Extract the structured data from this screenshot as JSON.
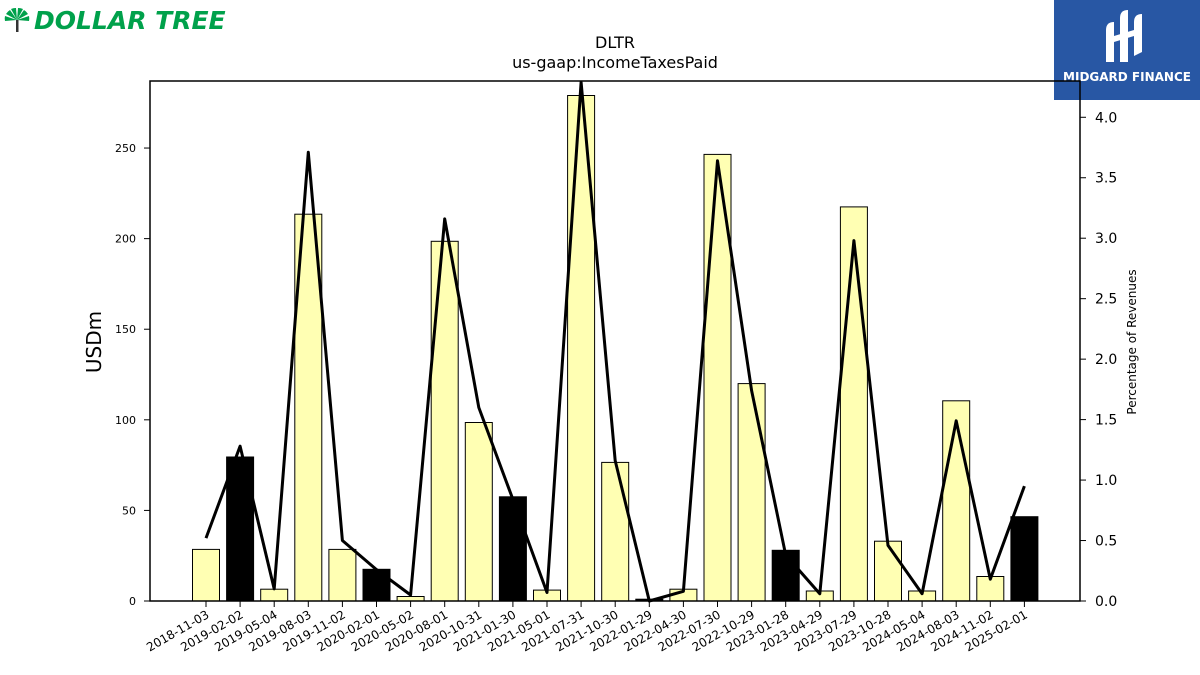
{
  "logos": {
    "left_text": "DOLLAR TREE",
    "left_color": "#00a14b",
    "right_text": "MIDGARD FINANCE",
    "right_bg": "#2857a4"
  },
  "chart_data": {
    "type": "bar",
    "title": "DLTR",
    "subtitle": "us-gaap:IncomeTaxesPaid",
    "ylabel": "USDm",
    "y2label": "Percentage of Revenues",
    "ylim": [
      0,
      287
    ],
    "y2lim": [
      0,
      4.3
    ],
    "yticks": [
      0,
      50,
      100,
      150,
      200,
      250
    ],
    "y2ticks": [
      "0.0",
      "0.5",
      "1.0",
      "1.5",
      "2.0",
      "2.5",
      "3.0",
      "3.5",
      "4.0"
    ],
    "categories": [
      "2018-11-03",
      "2019-02-02",
      "2019-05-04",
      "2019-08-03",
      "2019-11-02",
      "2020-02-01",
      "2020-05-02",
      "2020-08-01",
      "2020-10-31",
      "2021-01-30",
      "2021-05-01",
      "2021-07-31",
      "2021-10-30",
      "2022-01-29",
      "2022-04-30",
      "2022-07-30",
      "2022-10-29",
      "2023-01-28",
      "2023-04-29",
      "2023-07-29",
      "2023-10-28",
      "2024-05-04",
      "2024-08-03",
      "2024-11-02",
      "2025-02-01"
    ],
    "series": [
      {
        "kind": "bar",
        "values": [
          28.5,
          79.5,
          6.5,
          213.5,
          28.5,
          17.5,
          2.5,
          198.5,
          98.5,
          57.5,
          6.0,
          279.0,
          76.5,
          1.0,
          6.5,
          246.5,
          120.0,
          28.0,
          5.5,
          217.5,
          33.0,
          5.5,
          110.5,
          13.5,
          46.5
        ],
        "colors": [
          "#ffffb3",
          "#000000",
          "#ffffb3",
          "#ffffb3",
          "#ffffb3",
          "#000000",
          "#ffffb3",
          "#ffffb3",
          "#ffffb3",
          "#000000",
          "#ffffb3",
          "#ffffb3",
          "#ffffb3",
          "#000000",
          "#ffffb3",
          "#ffffb3",
          "#ffffb3",
          "#000000",
          "#ffffb3",
          "#ffffb3",
          "#ffffb3",
          "#ffffb3",
          "#ffffb3",
          "#ffffb3",
          "#000000"
        ]
      },
      {
        "kind": "line",
        "axis": "right",
        "values": [
          0.52,
          1.28,
          0.1,
          3.71,
          0.5,
          0.26,
          0.05,
          3.16,
          1.6,
          0.84,
          0.07,
          4.29,
          1.16,
          0.0,
          0.08,
          3.64,
          1.74,
          0.38,
          0.06,
          2.98,
          0.46,
          0.06,
          1.49,
          0.18,
          0.95
        ],
        "color": "#000000"
      }
    ],
    "grid": false,
    "legend": "none"
  }
}
